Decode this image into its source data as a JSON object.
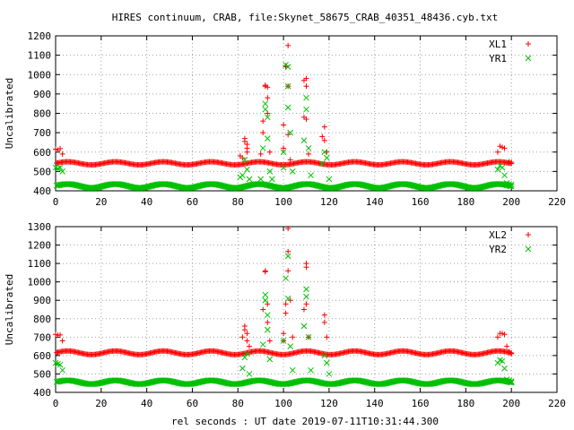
{
  "title": "HIRES continuum, CRAB, file:Skynet_58675_CRAB_40351_48436.cyb.txt",
  "xlabel": "rel seconds : UT date 2019-07-11T10:31:44.300",
  "colors": {
    "red": "#ff0000",
    "green": "#00c000"
  },
  "chart_data": [
    {
      "type": "scatter",
      "ylabel": "Uncalibrated",
      "xlim": [
        0,
        220
      ],
      "ylim": [
        400,
        1200
      ],
      "xticks": [
        0,
        20,
        40,
        60,
        80,
        100,
        120,
        140,
        160,
        180,
        200,
        220
      ],
      "yticks": [
        400,
        500,
        600,
        700,
        800,
        900,
        1000,
        1100,
        1200
      ],
      "grid": true,
      "legend_position": "top-right",
      "legend": [
        "XL1",
        "YR1"
      ],
      "series": [
        {
          "name": "XL1",
          "marker": "+",
          "color": "#ff0000",
          "baseline": {
            "x_range": [
              0.5,
              200
            ],
            "center": 542,
            "amplitude": 8,
            "period": 21
          },
          "points": [
            [
              0,
              615
            ],
            [
              1,
              610
            ],
            [
              2,
              618
            ],
            [
              3,
              590
            ],
            [
              81,
              580
            ],
            [
              82,
              570
            ],
            [
              83,
              670
            ],
            [
              83,
              655
            ],
            [
              84,
              640
            ],
            [
              84,
              620
            ],
            [
              84,
              600
            ],
            [
              90,
              590
            ],
            [
              91,
              760
            ],
            [
              91,
              700
            ],
            [
              92,
              945
            ],
            [
              92,
              940
            ],
            [
              93,
              935
            ],
            [
              93,
              880
            ],
            [
              93,
              800
            ],
            [
              94,
              600
            ],
            [
              100,
              740
            ],
            [
              100,
              620
            ],
            [
              101,
              1045
            ],
            [
              101,
              1040
            ],
            [
              102,
              1150
            ],
            [
              102,
              940
            ],
            [
              102,
              690
            ],
            [
              103,
              560
            ],
            [
              109,
              970
            ],
            [
              109,
              780
            ],
            [
              110,
              980
            ],
            [
              110,
              940
            ],
            [
              110,
              770
            ],
            [
              111,
              590
            ],
            [
              117,
              680
            ],
            [
              118,
              730
            ],
            [
              118,
              660
            ],
            [
              119,
              600
            ],
            [
              194,
              600
            ],
            [
              195,
              630
            ],
            [
              196,
              625
            ],
            [
              197,
              620
            ],
            [
              198,
              545
            ],
            [
              199,
              550
            ],
            [
              200,
              548
            ]
          ]
        },
        {
          "name": "YR1",
          "marker": "x",
          "color": "#00c000",
          "baseline": {
            "x_range": [
              0.5,
              200
            ],
            "center": 425,
            "amplitude": 10,
            "period": 21
          },
          "points": [
            [
              0,
              520
            ],
            [
              1,
              515
            ],
            [
              2,
              520
            ],
            [
              3,
              500
            ],
            [
              81,
              470
            ],
            [
              82,
              480
            ],
            [
              83,
              560
            ],
            [
              84,
              510
            ],
            [
              85,
              460
            ],
            [
              90,
              460
            ],
            [
              91,
              620
            ],
            [
              92,
              850
            ],
            [
              92,
              820
            ],
            [
              93,
              780
            ],
            [
              93,
              670
            ],
            [
              94,
              500
            ],
            [
              95,
              460
            ],
            [
              100,
              600
            ],
            [
              100,
              520
            ],
            [
              101,
              1050
            ],
            [
              102,
              1040
            ],
            [
              102,
              940
            ],
            [
              102,
              830
            ],
            [
              103,
              700
            ],
            [
              104,
              500
            ],
            [
              109,
              660
            ],
            [
              110,
              880
            ],
            [
              110,
              820
            ],
            [
              111,
              620
            ],
            [
              112,
              480
            ],
            [
              117,
              540
            ],
            [
              118,
              600
            ],
            [
              119,
              570
            ],
            [
              120,
              460
            ],
            [
              194,
              510
            ],
            [
              195,
              530
            ],
            [
              196,
              520
            ],
            [
              197,
              480
            ],
            [
              198,
              440
            ],
            [
              199,
              435
            ],
            [
              200,
              432
            ]
          ]
        }
      ]
    },
    {
      "type": "scatter",
      "ylabel": "Uncalibrated",
      "xlim": [
        0,
        220
      ],
      "ylim": [
        400,
        1300
      ],
      "xticks": [
        0,
        20,
        40,
        60,
        80,
        100,
        120,
        140,
        160,
        180,
        200,
        220
      ],
      "yticks": [
        400,
        500,
        600,
        700,
        800,
        900,
        1000,
        1100,
        1200,
        1300
      ],
      "grid": true,
      "legend_position": "top-right",
      "legend": [
        "XL2",
        "YR2"
      ],
      "series": [
        {
          "name": "XL2",
          "marker": "+",
          "color": "#ff0000",
          "baseline": {
            "x_range": [
              0.5,
              200
            ],
            "center": 615,
            "amplitude": 10,
            "period": 21
          },
          "points": [
            [
              0,
              715
            ],
            [
              1,
              710
            ],
            [
              2,
              712
            ],
            [
              3,
              680
            ],
            [
              82,
              700
            ],
            [
              83,
              760
            ],
            [
              83,
              740
            ],
            [
              84,
              720
            ],
            [
              84,
              680
            ],
            [
              85,
              650
            ],
            [
              91,
              850
            ],
            [
              92,
              1060
            ],
            [
              92,
              1055
            ],
            [
              93,
              880
            ],
            [
              93,
              780
            ],
            [
              94,
              680
            ],
            [
              100,
              720
            ],
            [
              100,
              680
            ],
            [
              101,
              880
            ],
            [
              101,
              830
            ],
            [
              102,
              1165
            ],
            [
              102,
              1060
            ],
            [
              102,
              1290
            ],
            [
              103,
              900
            ],
            [
              104,
              700
            ],
            [
              109,
              850
            ],
            [
              110,
              1100
            ],
            [
              110,
              1080
            ],
            [
              110,
              880
            ],
            [
              111,
              700
            ],
            [
              118,
              820
            ],
            [
              118,
              780
            ],
            [
              119,
              700
            ],
            [
              194,
              700
            ],
            [
              195,
              720
            ],
            [
              196,
              720
            ],
            [
              197,
              715
            ],
            [
              198,
              650
            ],
            [
              199,
              620
            ],
            [
              200,
              610
            ]
          ]
        },
        {
          "name": "YR2",
          "marker": "x",
          "color": "#00c000",
          "baseline": {
            "x_range": [
              0.5,
              200
            ],
            "center": 455,
            "amplitude": 10,
            "period": 21
          },
          "points": [
            [
              0,
              560
            ],
            [
              1,
              555
            ],
            [
              2,
              550
            ],
            [
              3,
              520
            ],
            [
              82,
              530
            ],
            [
              83,
              590
            ],
            [
              84,
              610
            ],
            [
              85,
              500
            ],
            [
              91,
              660
            ],
            [
              92,
              930
            ],
            [
              92,
              900
            ],
            [
              93,
              820
            ],
            [
              93,
              740
            ],
            [
              94,
              580
            ],
            [
              100,
              680
            ],
            [
              101,
              1020
            ],
            [
              102,
              1140
            ],
            [
              102,
              910
            ],
            [
              103,
              650
            ],
            [
              104,
              520
            ],
            [
              109,
              760
            ],
            [
              110,
              960
            ],
            [
              110,
              920
            ],
            [
              111,
              700
            ],
            [
              112,
              520
            ],
            [
              118,
              600
            ],
            [
              119,
              560
            ],
            [
              120,
              500
            ],
            [
              194,
              560
            ],
            [
              195,
              575
            ],
            [
              196,
              570
            ],
            [
              197,
              530
            ],
            [
              198,
              470
            ],
            [
              199,
              465
            ],
            [
              200,
              460
            ]
          ]
        }
      ]
    }
  ]
}
